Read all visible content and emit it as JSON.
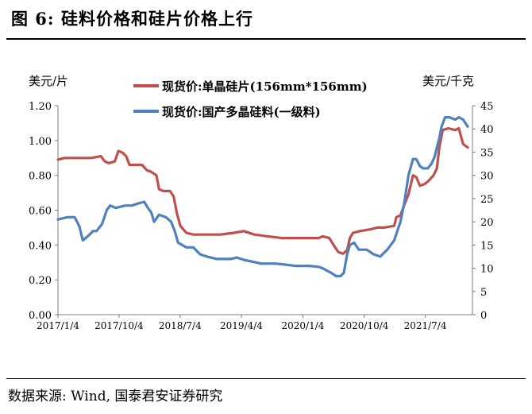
{
  "figure_title": "图 6:  硅料价格和硅片价格上行",
  "source": "数据来源:  Wind, 国泰君安证券研究",
  "chart_data": {
    "type": "line",
    "title": "",
    "left_axis_unit": "美元/片",
    "right_axis_unit": "美元/千克",
    "left_ticks": [
      "0.00",
      "0.20",
      "0.40",
      "0.60",
      "0.80",
      "1.00",
      "1.20"
    ],
    "right_ticks": [
      "0",
      "5",
      "10",
      "15",
      "20",
      "25",
      "30",
      "35",
      "40",
      "45"
    ],
    "x_ticks": [
      "2017/1/4",
      "2017/10/4",
      "2018/7/4",
      "2019/4/4",
      "2020/1/4",
      "2020/10/4",
      "2021/7/4"
    ],
    "ylim_left": [
      0,
      1.2
    ],
    "ylim_right": [
      0,
      45
    ],
    "xlim": [
      "2017-01-04",
      "2022-01-31"
    ],
    "grid": false,
    "legend_position": "top",
    "colors": {
      "wafer": "#c0504d",
      "silicon": "#4f81bd"
    },
    "series": [
      {
        "name": "现货价:单晶硅片(156mm*156mm)",
        "axis": "left",
        "color": "#c0504d",
        "points": [
          [
            "2017-01-04",
            0.89
          ],
          [
            "2017-02-01",
            0.9
          ],
          [
            "2017-04-01",
            0.9
          ],
          [
            "2017-06-01",
            0.9
          ],
          [
            "2017-07-15",
            0.91
          ],
          [
            "2017-08-01",
            0.88
          ],
          [
            "2017-08-20",
            0.87
          ],
          [
            "2017-09-15",
            0.88
          ],
          [
            "2017-10-01",
            0.94
          ],
          [
            "2017-10-20",
            0.93
          ],
          [
            "2017-11-05",
            0.91
          ],
          [
            "2017-11-20",
            0.86
          ],
          [
            "2017-12-20",
            0.86
          ],
          [
            "2018-01-15",
            0.86
          ],
          [
            "2018-02-05",
            0.83
          ],
          [
            "2018-02-25",
            0.82
          ],
          [
            "2018-03-20",
            0.8
          ],
          [
            "2018-04-01",
            0.72
          ],
          [
            "2018-04-20",
            0.71
          ],
          [
            "2018-05-20",
            0.71
          ],
          [
            "2018-06-05",
            0.68
          ],
          [
            "2018-06-20",
            0.58
          ],
          [
            "2018-07-05",
            0.51
          ],
          [
            "2018-08-01",
            0.47
          ],
          [
            "2018-09-01",
            0.46
          ],
          [
            "2018-11-01",
            0.46
          ],
          [
            "2019-01-01",
            0.46
          ],
          [
            "2019-03-01",
            0.47
          ],
          [
            "2019-04-15",
            0.48
          ],
          [
            "2019-06-01",
            0.46
          ],
          [
            "2019-08-01",
            0.45
          ],
          [
            "2019-10-01",
            0.44
          ],
          [
            "2019-12-01",
            0.44
          ],
          [
            "2020-02-01",
            0.44
          ],
          [
            "2020-03-15",
            0.44
          ],
          [
            "2020-04-01",
            0.45
          ],
          [
            "2020-05-01",
            0.44
          ],
          [
            "2020-05-20",
            0.4
          ],
          [
            "2020-06-10",
            0.36
          ],
          [
            "2020-07-01",
            0.35
          ],
          [
            "2020-07-20",
            0.37
          ],
          [
            "2020-08-01",
            0.44
          ],
          [
            "2020-08-15",
            0.47
          ],
          [
            "2020-09-15",
            0.48
          ],
          [
            "2020-11-01",
            0.49
          ],
          [
            "2020-12-01",
            0.5
          ],
          [
            "2021-01-01",
            0.5
          ],
          [
            "2021-02-15",
            0.51
          ],
          [
            "2021-02-25",
            0.56
          ],
          [
            "2021-03-15",
            0.57
          ],
          [
            "2021-04-01",
            0.63
          ],
          [
            "2021-04-20",
            0.69
          ],
          [
            "2021-05-10",
            0.8
          ],
          [
            "2021-05-25",
            0.79
          ],
          [
            "2021-06-10",
            0.74
          ],
          [
            "2021-07-01",
            0.75
          ],
          [
            "2021-07-20",
            0.77
          ],
          [
            "2021-08-10",
            0.8
          ],
          [
            "2021-08-25",
            0.84
          ],
          [
            "2021-09-05",
            0.96
          ],
          [
            "2021-09-20",
            1.06
          ],
          [
            "2021-10-15",
            1.07
          ],
          [
            "2021-11-15",
            1.06
          ],
          [
            "2021-12-01",
            1.07
          ],
          [
            "2021-12-20",
            0.98
          ],
          [
            "2022-01-10",
            0.96
          ]
        ]
      },
      {
        "name": "现货价:国产多晶硅料(一级料)",
        "axis": "right",
        "color": "#4f81bd",
        "points": [
          [
            "2017-01-04",
            20.5
          ],
          [
            "2017-02-15",
            21.0
          ],
          [
            "2017-03-20",
            21.0
          ],
          [
            "2017-04-10",
            19.0
          ],
          [
            "2017-04-25",
            16.0
          ],
          [
            "2017-05-20",
            17.0
          ],
          [
            "2017-06-10",
            18.0
          ],
          [
            "2017-06-25",
            18.0
          ],
          [
            "2017-07-20",
            19.5
          ],
          [
            "2017-08-10",
            22.5
          ],
          [
            "2017-08-25",
            23.5
          ],
          [
            "2017-09-20",
            23.0
          ],
          [
            "2017-11-01",
            23.5
          ],
          [
            "2017-12-01",
            23.5
          ],
          [
            "2018-01-01",
            24.0
          ],
          [
            "2018-01-25",
            24.3
          ],
          [
            "2018-02-10",
            23.0
          ],
          [
            "2018-02-25",
            22.0
          ],
          [
            "2018-03-10",
            20.0
          ],
          [
            "2018-04-01",
            21.5
          ],
          [
            "2018-05-01",
            21.0
          ],
          [
            "2018-05-25",
            20.0
          ],
          [
            "2018-06-10",
            18.0
          ],
          [
            "2018-06-25",
            15.5
          ],
          [
            "2018-08-01",
            14.5
          ],
          [
            "2018-09-01",
            14.5
          ],
          [
            "2018-10-01",
            13.0
          ],
          [
            "2018-11-01",
            12.5
          ],
          [
            "2018-12-15",
            12.0
          ],
          [
            "2019-01-15",
            12.0
          ],
          [
            "2019-02-15",
            12.0
          ],
          [
            "2019-03-15",
            12.3
          ],
          [
            "2019-04-15",
            11.8
          ],
          [
            "2019-05-15",
            11.5
          ],
          [
            "2019-07-01",
            11.0
          ],
          [
            "2019-09-01",
            11.0
          ],
          [
            "2019-10-15",
            10.8
          ],
          [
            "2019-12-01",
            10.5
          ],
          [
            "2020-02-01",
            10.5
          ],
          [
            "2020-03-15",
            10.3
          ],
          [
            "2020-04-01",
            10.0
          ],
          [
            "2020-04-20",
            9.5
          ],
          [
            "2020-05-10",
            9.0
          ],
          [
            "2020-06-01",
            8.3
          ],
          [
            "2020-06-20",
            8.3
          ],
          [
            "2020-07-05",
            9.0
          ],
          [
            "2020-07-20",
            13.0
          ],
          [
            "2020-08-01",
            15.0
          ],
          [
            "2020-08-20",
            15.5
          ],
          [
            "2020-09-10",
            14.0
          ],
          [
            "2020-10-15",
            14.0
          ],
          [
            "2020-11-15",
            13.0
          ],
          [
            "2020-12-15",
            12.5
          ],
          [
            "2021-01-15",
            14.0
          ],
          [
            "2021-02-15",
            16.0
          ],
          [
            "2021-03-15",
            20.0
          ],
          [
            "2021-04-01",
            24.0
          ],
          [
            "2021-04-20",
            30.0
          ],
          [
            "2021-05-10",
            33.5
          ],
          [
            "2021-05-25",
            33.5
          ],
          [
            "2021-06-10",
            32.0
          ],
          [
            "2021-06-25",
            31.5
          ],
          [
            "2021-07-15",
            31.5
          ],
          [
            "2021-08-01",
            32.5
          ],
          [
            "2021-08-15",
            34.0
          ],
          [
            "2021-08-25",
            36.0
          ],
          [
            "2021-09-05",
            38.0
          ],
          [
            "2021-09-15",
            40.5
          ],
          [
            "2021-10-01",
            42.5
          ],
          [
            "2021-10-20",
            42.5
          ],
          [
            "2021-11-15",
            42.0
          ],
          [
            "2021-12-01",
            42.5
          ],
          [
            "2021-12-20",
            42.0
          ],
          [
            "2022-01-10",
            40.5
          ]
        ]
      }
    ]
  }
}
